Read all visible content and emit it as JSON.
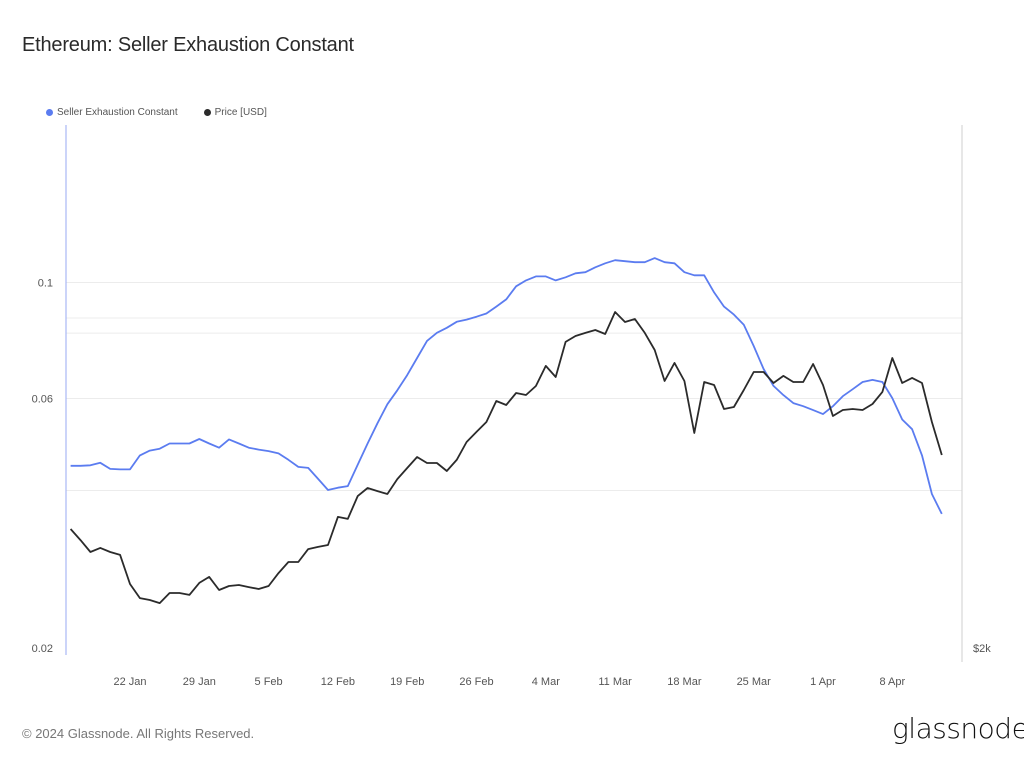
{
  "title": "Ethereum: Seller Exhaustion Constant",
  "footer": "© 2024 Glassnode. All Rights Reserved.",
  "logo": "glassnode",
  "colors": {
    "sec": "#5b7cf0",
    "price": "#2b2b2b",
    "grid": "#ececec"
  },
  "chart_data": {
    "type": "line",
    "title": "Ethereum: Seller Exhaustion Constant",
    "legend_position": "top-left",
    "grid": true,
    "xticks": [
      "22 Jan",
      "29 Jan",
      "5 Feb",
      "12 Feb",
      "19 Feb",
      "26 Feb",
      "4 Mar",
      "11 Mar",
      "18 Mar",
      "25 Mar",
      "1 Apr",
      "8 Apr"
    ],
    "xtick_dates": [
      "2024-01-22",
      "2024-01-29",
      "2024-02-05",
      "2024-02-12",
      "2024-02-19",
      "2024-02-26",
      "2024-03-04",
      "2024-03-11",
      "2024-03-18",
      "2024-03-25",
      "2024-04-01",
      "2024-04-08"
    ],
    "xlim": [
      "2024-01-15",
      "2024-04-15"
    ],
    "y_left": {
      "scale": "log",
      "ylim": [
        0.02,
        0.2
      ],
      "ticks": [
        "0.02",
        "0.06",
        "0.1"
      ],
      "tick_values": [
        0.02,
        0.06,
        0.1
      ],
      "grid_values": [
        0.04,
        0.06,
        0.08,
        0.1
      ]
    },
    "y_right": {
      "scale": "log",
      "ylim": [
        2000,
        6000
      ],
      "ticks": [
        "$2k"
      ],
      "tick_values": [
        2000
      ],
      "grid_values": [
        4000
      ]
    },
    "x": [
      "2024-01-16",
      "2024-01-17",
      "2024-01-18",
      "2024-01-19",
      "2024-01-20",
      "2024-01-21",
      "2024-01-22",
      "2024-01-23",
      "2024-01-24",
      "2024-01-25",
      "2024-01-26",
      "2024-01-27",
      "2024-01-28",
      "2024-01-29",
      "2024-01-30",
      "2024-01-31",
      "2024-02-01",
      "2024-02-02",
      "2024-02-03",
      "2024-02-04",
      "2024-02-05",
      "2024-02-06",
      "2024-02-07",
      "2024-02-08",
      "2024-02-09",
      "2024-02-10",
      "2024-02-11",
      "2024-02-12",
      "2024-02-13",
      "2024-02-14",
      "2024-02-15",
      "2024-02-16",
      "2024-02-17",
      "2024-02-18",
      "2024-02-19",
      "2024-02-20",
      "2024-02-21",
      "2024-02-22",
      "2024-02-23",
      "2024-02-24",
      "2024-02-25",
      "2024-02-26",
      "2024-02-27",
      "2024-02-28",
      "2024-02-29",
      "2024-03-01",
      "2024-03-02",
      "2024-03-03",
      "2024-03-04",
      "2024-03-05",
      "2024-03-06",
      "2024-03-07",
      "2024-03-08",
      "2024-03-09",
      "2024-03-10",
      "2024-03-11",
      "2024-03-12",
      "2024-03-13",
      "2024-03-14",
      "2024-03-15",
      "2024-03-16",
      "2024-03-17",
      "2024-03-18",
      "2024-03-19",
      "2024-03-20",
      "2024-03-21",
      "2024-03-22",
      "2024-03-23",
      "2024-03-24",
      "2024-03-25",
      "2024-03-26",
      "2024-03-27",
      "2024-03-28",
      "2024-03-29",
      "2024-03-30",
      "2024-03-31",
      "2024-04-01",
      "2024-04-02",
      "2024-04-03",
      "2024-04-04",
      "2024-04-05",
      "2024-04-06",
      "2024-04-07",
      "2024-04-08",
      "2024-04-09",
      "2024-04-10",
      "2024-04-11",
      "2024-04-12",
      "2024-04-13"
    ],
    "series": [
      {
        "name": "Seller Exhaustion Constant",
        "axis": "left",
        "color": "#5b7cf0",
        "values": [
          0.0446,
          0.0446,
          0.0447,
          0.0452,
          0.044,
          0.0439,
          0.0439,
          0.0467,
          0.0477,
          0.0481,
          0.0492,
          0.0492,
          0.0492,
          0.0502,
          0.0492,
          0.0483,
          0.0501,
          0.0492,
          0.0483,
          0.0479,
          0.0476,
          0.0471,
          0.0458,
          0.0444,
          0.0442,
          0.0421,
          0.0401,
          0.0405,
          0.0408,
          0.0448,
          0.0492,
          0.0538,
          0.0585,
          0.0622,
          0.0665,
          0.0717,
          0.0773,
          0.0801,
          0.0819,
          0.0841,
          0.0849,
          0.086,
          0.0872,
          0.0899,
          0.0928,
          0.0983,
          0.1009,
          0.1027,
          0.1027,
          0.1009,
          0.1023,
          0.1041,
          0.1046,
          0.1069,
          0.1088,
          0.1103,
          0.1098,
          0.1093,
          0.1093,
          0.1113,
          0.1093,
          0.1088,
          0.1046,
          0.1032,
          0.1032,
          0.0957,
          0.0899,
          0.0868,
          0.083,
          0.0756,
          0.0683,
          0.0634,
          0.0609,
          0.0588,
          0.058,
          0.057,
          0.056,
          0.058,
          0.0606,
          0.0625,
          0.0645,
          0.0651,
          0.0645,
          0.0601,
          0.0547,
          0.0524,
          0.0467,
          0.0394,
          0.0361
        ]
      },
      {
        "name": "Price [USD]",
        "axis": "right",
        "color": "#2b2b2b",
        "values": [
          2568,
          2509,
          2447,
          2468,
          2447,
          2432,
          2288,
          2221,
          2212,
          2198,
          2245,
          2245,
          2236,
          2293,
          2322,
          2259,
          2278,
          2283,
          2273,
          2264,
          2278,
          2341,
          2396,
          2396,
          2462,
          2473,
          2483,
          2634,
          2623,
          2752,
          2799,
          2781,
          2764,
          2852,
          2919,
          2987,
          2950,
          2950,
          2901,
          2969,
          3083,
          3149,
          3215,
          3360,
          3332,
          3417,
          3403,
          3468,
          3617,
          3534,
          3804,
          3852,
          3877,
          3901,
          3868,
          4051,
          3967,
          3992,
          3877,
          3740,
          3504,
          3640,
          3504,
          3142,
          3497,
          3475,
          3304,
          3318,
          3439,
          3571,
          3571,
          3490,
          3542,
          3497,
          3497,
          3632,
          3475,
          3256,
          3297,
          3304,
          3297,
          3339,
          3425,
          3678,
          3490,
          3527,
          3490,
          3215,
          3000
        ]
      }
    ]
  }
}
